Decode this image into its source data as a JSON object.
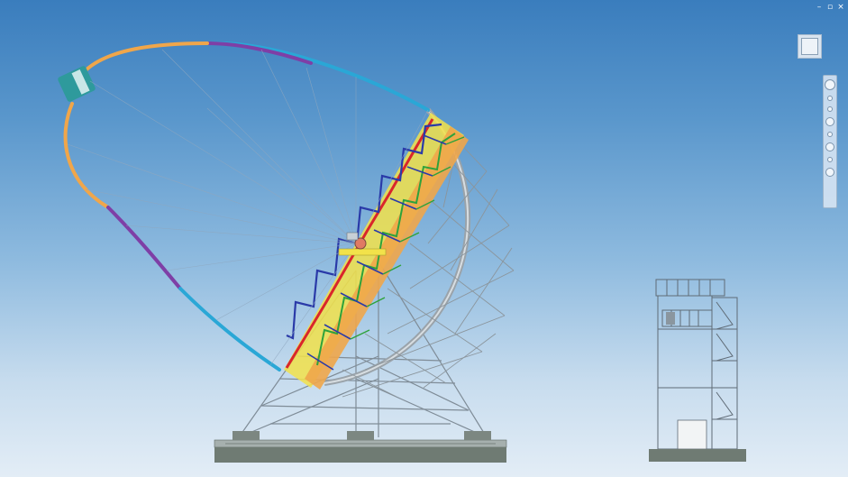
{
  "window": {
    "minimize_glyph": "–",
    "restore_glyph": "▫",
    "close_glyph": "×"
  },
  "viewcube": {
    "icon": "viewcube-icon"
  },
  "navigation_bar": {
    "tools": [
      "steering-wheel-icon",
      "pan-icon",
      "zoom-icon",
      "orbit-icon",
      "look-icon",
      "walk-icon",
      "center-icon",
      "rewind-icon"
    ]
  },
  "scene": {
    "objects": [
      "antenna-structure",
      "control-tower"
    ],
    "colors": {
      "sky_top": "#3a7dbd",
      "sky_bottom": "#e3edf6",
      "truss_grey": "#7f8c97",
      "accent_yellow": "#f2e24a",
      "accent_orange": "#f0a64a",
      "accent_red": "#d9262b",
      "accent_blue": "#2a3aa8",
      "accent_green": "#2fa23b",
      "arm_purple": "#7e3fa6",
      "arm_cyan": "#2aa7d6",
      "feed_teal": "#2e9a9c",
      "base_grey": "#6f7b73"
    }
  }
}
